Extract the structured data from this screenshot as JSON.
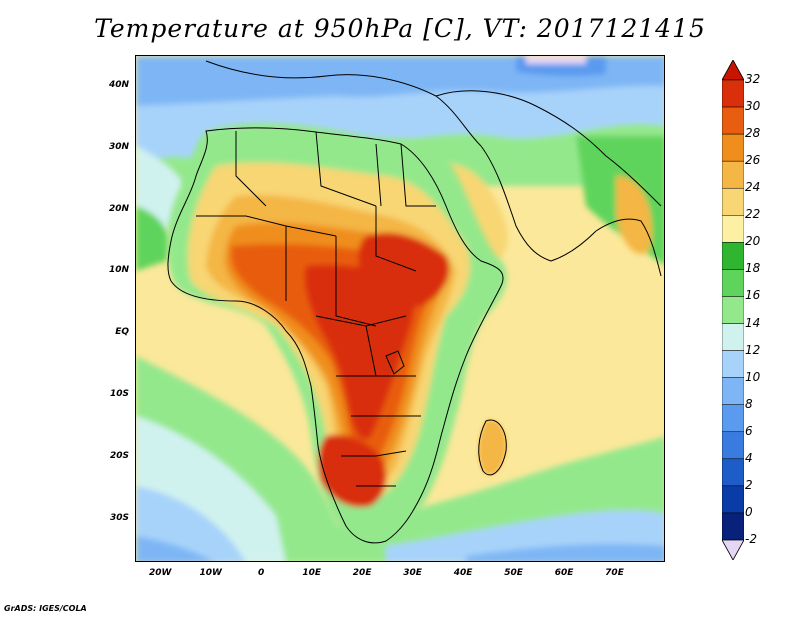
{
  "title": "Temperature at 950hPa [C], VT: 2017121415",
  "credit": "GrADS: IGES/COLA",
  "map": {
    "lon_range": [
      -25,
      80
    ],
    "lat_range": [
      -37,
      45
    ],
    "lat_ticks": [
      {
        "value": 40,
        "label": "40N"
      },
      {
        "value": 30,
        "label": "30N"
      },
      {
        "value": 20,
        "label": "20N"
      },
      {
        "value": 10,
        "label": "10N"
      },
      {
        "value": 0,
        "label": "EQ"
      },
      {
        "value": -10,
        "label": "10S"
      },
      {
        "value": -20,
        "label": "20S"
      },
      {
        "value": -30,
        "label": "30S"
      }
    ],
    "lon_ticks": [
      {
        "value": -20,
        "label": "20W"
      },
      {
        "value": -10,
        "label": "10W"
      },
      {
        "value": 0,
        "label": "0"
      },
      {
        "value": 10,
        "label": "10E"
      },
      {
        "value": 20,
        "label": "20E"
      },
      {
        "value": 30,
        "label": "30E"
      },
      {
        "value": 40,
        "label": "40E"
      },
      {
        "value": 50,
        "label": "50E"
      },
      {
        "value": 60,
        "label": "60E"
      },
      {
        "value": 70,
        "label": "70E"
      }
    ]
  },
  "colorbar": {
    "levels": [
      -2,
      0,
      2,
      4,
      6,
      8,
      10,
      12,
      14,
      16,
      18,
      20,
      22,
      24,
      26,
      28,
      30,
      32
    ],
    "labels": [
      "-2",
      "0",
      "2",
      "4",
      "6",
      "8",
      "10",
      "12",
      "14",
      "16",
      "18",
      "20",
      "22",
      "24",
      "26",
      "28",
      "30",
      "32"
    ],
    "under_color": "#e6d6f5",
    "over_color": "#c81400",
    "colors": [
      "#08217a",
      "#0a3ca8",
      "#1e5cc8",
      "#3a7be0",
      "#5a9aef",
      "#7eb6f5",
      "#a7d3fa",
      "#d0f2ef",
      "#94e88c",
      "#5fd45c",
      "#2fb52f",
      "#fbf0a3",
      "#f8d673",
      "#f4b645",
      "#ef8e1c",
      "#e85d10",
      "#d92f0a"
    ]
  }
}
